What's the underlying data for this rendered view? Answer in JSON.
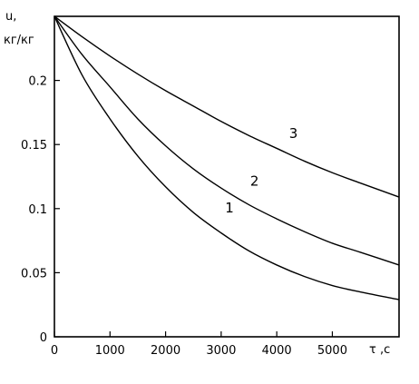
{
  "chart_data": {
    "type": "line",
    "xlabel": "τ ,c",
    "ylabel_line1": "u,",
    "ylabel_line2": "кг/кг",
    "xlim": [
      0,
      6200
    ],
    "ylim": [
      0,
      0.25
    ],
    "x_ticks": [
      0,
      1000,
      2000,
      3000,
      4000,
      5000
    ],
    "x_tick_labels": [
      "0",
      "1000",
      "2000",
      "3000",
      "4000",
      "5000"
    ],
    "y_ticks": [
      0,
      0.05,
      0.1,
      0.15,
      0.2
    ],
    "y_tick_labels": [
      "0",
      "0.05",
      "0.1",
      "0.15",
      "0.2"
    ],
    "grid": false,
    "series": [
      {
        "name": "1",
        "x": [
          0,
          500,
          1000,
          1500,
          2000,
          2500,
          3000,
          3500,
          4000,
          4500,
          5000,
          5500,
          6200
        ],
        "y": [
          0.25,
          0.204,
          0.17,
          0.141,
          0.117,
          0.097,
          0.081,
          0.067,
          0.056,
          0.047,
          0.04,
          0.035,
          0.029
        ]
      },
      {
        "name": "2",
        "x": [
          0,
          500,
          1000,
          1500,
          2000,
          2500,
          3000,
          3500,
          4000,
          4500,
          5000,
          5500,
          6200
        ],
        "y": [
          0.25,
          0.22,
          0.195,
          0.17,
          0.149,
          0.131,
          0.116,
          0.103,
          0.092,
          0.082,
          0.073,
          0.066,
          0.056
        ]
      },
      {
        "name": "3",
        "x": [
          0,
          500,
          1000,
          1500,
          2000,
          2500,
          3000,
          3500,
          4000,
          4500,
          5000,
          5500,
          6200
        ],
        "y": [
          0.25,
          0.234,
          0.219,
          0.205,
          0.192,
          0.18,
          0.168,
          0.157,
          0.147,
          0.137,
          0.128,
          0.12,
          0.109
        ]
      }
    ],
    "curve_labels": [
      {
        "text": "1",
        "x": 3150,
        "y": 0.097
      },
      {
        "text": "2",
        "x": 3600,
        "y": 0.118
      },
      {
        "text": "3",
        "x": 4300,
        "y": 0.155
      }
    ]
  }
}
